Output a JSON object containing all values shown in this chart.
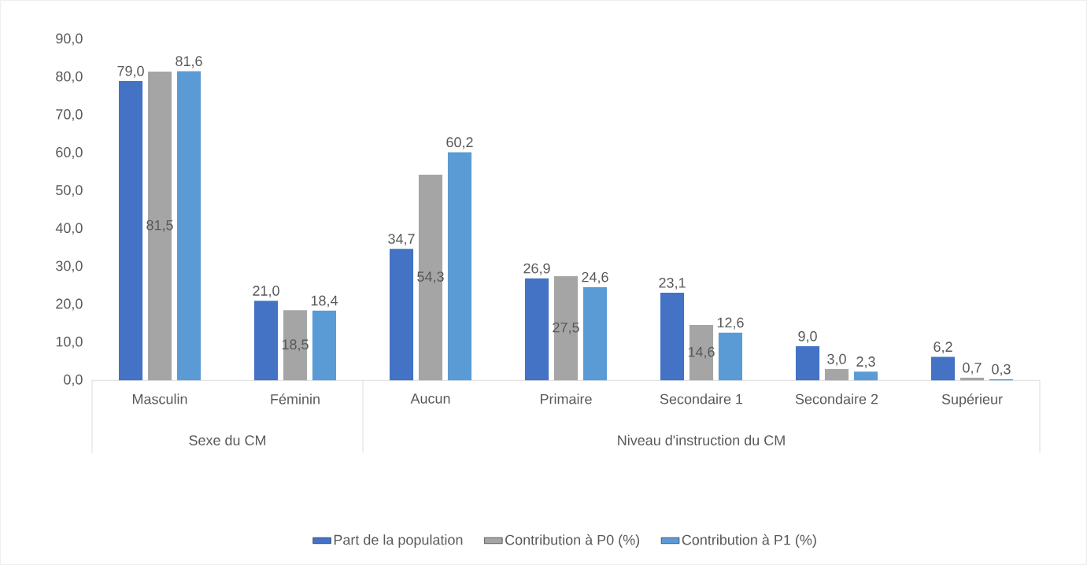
{
  "chart_data": {
    "type": "bar",
    "categories": [
      "Masculin",
      "Féminin",
      "Aucun",
      "Primaire",
      "Secondaire 1",
      "Secondaire 2",
      "Supérieur"
    ],
    "series": [
      {
        "name": "Part de la population",
        "color": "#4472c4",
        "values": [
          79.0,
          21.0,
          34.7,
          26.9,
          23.1,
          9.0,
          6.2
        ],
        "value_labels": [
          "79,0",
          "21,0",
          "34,7",
          "26,9",
          "23,1",
          "9,0",
          "6,2"
        ]
      },
      {
        "name": "Contribution à P0 (%)",
        "color": "#a5a5a5",
        "values": [
          81.5,
          18.5,
          54.3,
          27.5,
          14.6,
          3.0,
          0.7
        ],
        "value_labels": [
          "81,5",
          "18,5",
          "54,3",
          "27,5",
          "14,6",
          "3,0",
          "0,7"
        ]
      },
      {
        "name": "Contribution à P1 (%)",
        "color": "#5b9bd5",
        "values": [
          81.6,
          18.4,
          60.2,
          24.6,
          12.6,
          2.3,
          0.3
        ],
        "value_labels": [
          "81,6",
          "18,4",
          "60,2",
          "24,6",
          "12,6",
          "2,3",
          "0,3"
        ]
      }
    ],
    "ylim": [
      0,
      90
    ],
    "yticks": [
      {
        "value": 0,
        "label": "0,0"
      },
      {
        "value": 10,
        "label": "10,0"
      },
      {
        "value": 20,
        "label": "20,0"
      },
      {
        "value": 30,
        "label": "30,0"
      },
      {
        "value": 40,
        "label": "40,0"
      },
      {
        "value": 50,
        "label": "50,0"
      },
      {
        "value": 60,
        "label": "60,0"
      },
      {
        "value": 70,
        "label": "70,0"
      },
      {
        "value": 80,
        "label": "80,0"
      },
      {
        "value": 90,
        "label": "90,0"
      }
    ],
    "annotations": [
      "Sexe du CM",
      "Niveau d'instruction du CM"
    ],
    "legend": "bottom",
    "grid": false
  }
}
